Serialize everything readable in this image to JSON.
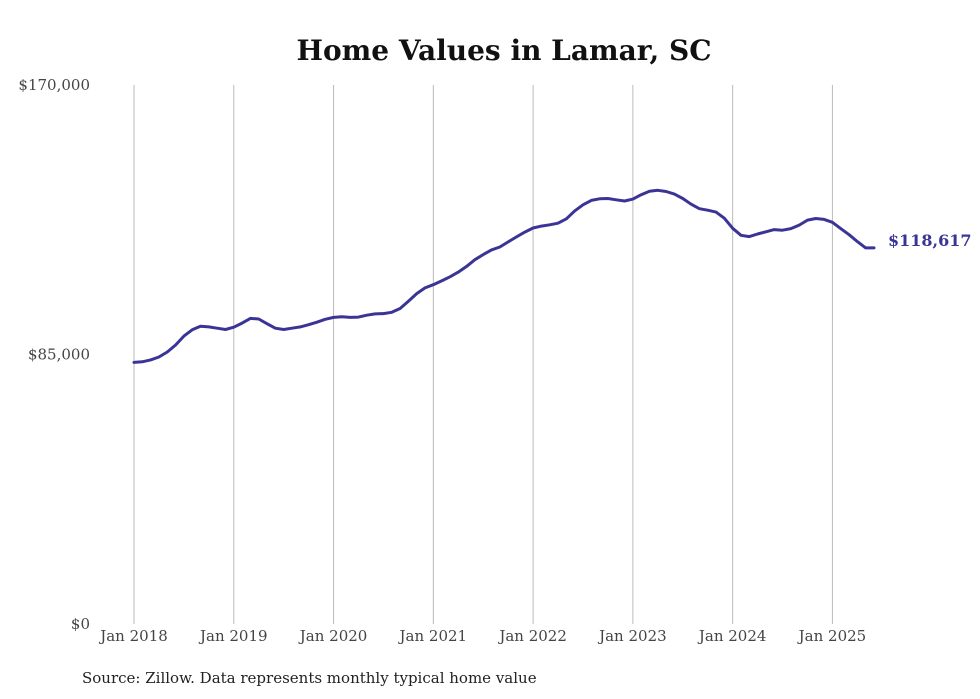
{
  "colors": {
    "line": "#3a3496",
    "grid": "#bbbbbb",
    "text": "#444444"
  },
  "chart_data": {
    "type": "line",
    "title": "Home Values in Lamar, SC",
    "xlabel": "",
    "ylabel": "",
    "ylim": [
      0,
      170000
    ],
    "xlim": [
      "2018-01",
      "2025-06"
    ],
    "grid": {
      "vertical": true,
      "horizontal": false
    },
    "y_ticks": [
      {
        "value": 0,
        "label": "$0"
      },
      {
        "value": 85000,
        "label": "$85,000"
      },
      {
        "value": 170000,
        "label": "$170,000"
      }
    ],
    "x_ticks": [
      {
        "value": "2018-01",
        "label": "Jan 2018"
      },
      {
        "value": "2019-01",
        "label": "Jan 2019"
      },
      {
        "value": "2020-01",
        "label": "Jan 2020"
      },
      {
        "value": "2021-01",
        "label": "Jan 2021"
      },
      {
        "value": "2022-01",
        "label": "Jan 2022"
      },
      {
        "value": "2023-01",
        "label": "Jan 2023"
      },
      {
        "value": "2024-01",
        "label": "Jan 2024"
      },
      {
        "value": "2025-01",
        "label": "Jan 2025"
      }
    ],
    "series": [
      {
        "x": [
          "2018-01",
          "2018-02",
          "2018-03",
          "2018-04",
          "2018-05",
          "2018-06",
          "2018-07",
          "2018-08",
          "2018-09",
          "2018-10",
          "2018-11",
          "2018-12",
          "2019-01",
          "2019-02",
          "2019-03",
          "2019-04",
          "2019-05",
          "2019-06",
          "2019-07",
          "2019-08",
          "2019-09",
          "2019-10",
          "2019-11",
          "2019-12",
          "2020-01",
          "2020-02",
          "2020-03",
          "2020-04",
          "2020-05",
          "2020-06",
          "2020-07",
          "2020-08",
          "2020-09",
          "2020-10",
          "2020-11",
          "2020-12",
          "2021-01",
          "2021-02",
          "2021-03",
          "2021-04",
          "2021-05",
          "2021-06",
          "2021-07",
          "2021-08",
          "2021-09",
          "2021-10",
          "2021-11",
          "2021-12",
          "2022-01",
          "2022-02",
          "2022-03",
          "2022-04",
          "2022-05",
          "2022-06",
          "2022-07",
          "2022-08",
          "2022-09",
          "2022-10",
          "2022-11",
          "2022-12",
          "2023-01",
          "2023-02",
          "2023-03",
          "2023-04",
          "2023-05",
          "2023-06",
          "2023-07",
          "2023-08",
          "2023-09",
          "2023-10",
          "2023-11",
          "2023-12",
          "2024-01",
          "2024-02",
          "2024-03",
          "2024-04",
          "2024-05",
          "2024-06",
          "2024-07",
          "2024-08",
          "2024-09",
          "2024-10",
          "2024-11",
          "2024-12",
          "2025-01",
          "2025-02",
          "2025-03",
          "2025-04",
          "2025-05",
          "2025-06"
        ],
        "values": [
          82500,
          82700,
          83300,
          84200,
          85800,
          88000,
          90800,
          92800,
          93900,
          93700,
          93300,
          92900,
          93600,
          94900,
          96400,
          96200,
          94700,
          93300,
          92900,
          93300,
          93700,
          94400,
          95200,
          96100,
          96700,
          96900,
          96700,
          96800,
          97400,
          97800,
          97900,
          98300,
          99500,
          101800,
          104200,
          106000,
          107000,
          108200,
          109500,
          111000,
          112800,
          114900,
          116500,
          118000,
          118900,
          120500,
          122100,
          123600,
          124900,
          125500,
          125900,
          126400,
          127800,
          130300,
          132200,
          133600,
          134100,
          134200,
          133800,
          133400,
          134000,
          135400,
          136500,
          136800,
          136400,
          135600,
          134200,
          132400,
          131000,
          130500,
          129900,
          128000,
          124800,
          122600,
          122200,
          123000,
          123700,
          124400,
          124200,
          124700,
          125800,
          127400,
          127900,
          127600,
          126700,
          124700,
          122800,
          120600,
          118617,
          118617
        ]
      }
    ],
    "end_label": "$118,617",
    "source": "Source: Zillow. Data represents monthly typical home value"
  }
}
